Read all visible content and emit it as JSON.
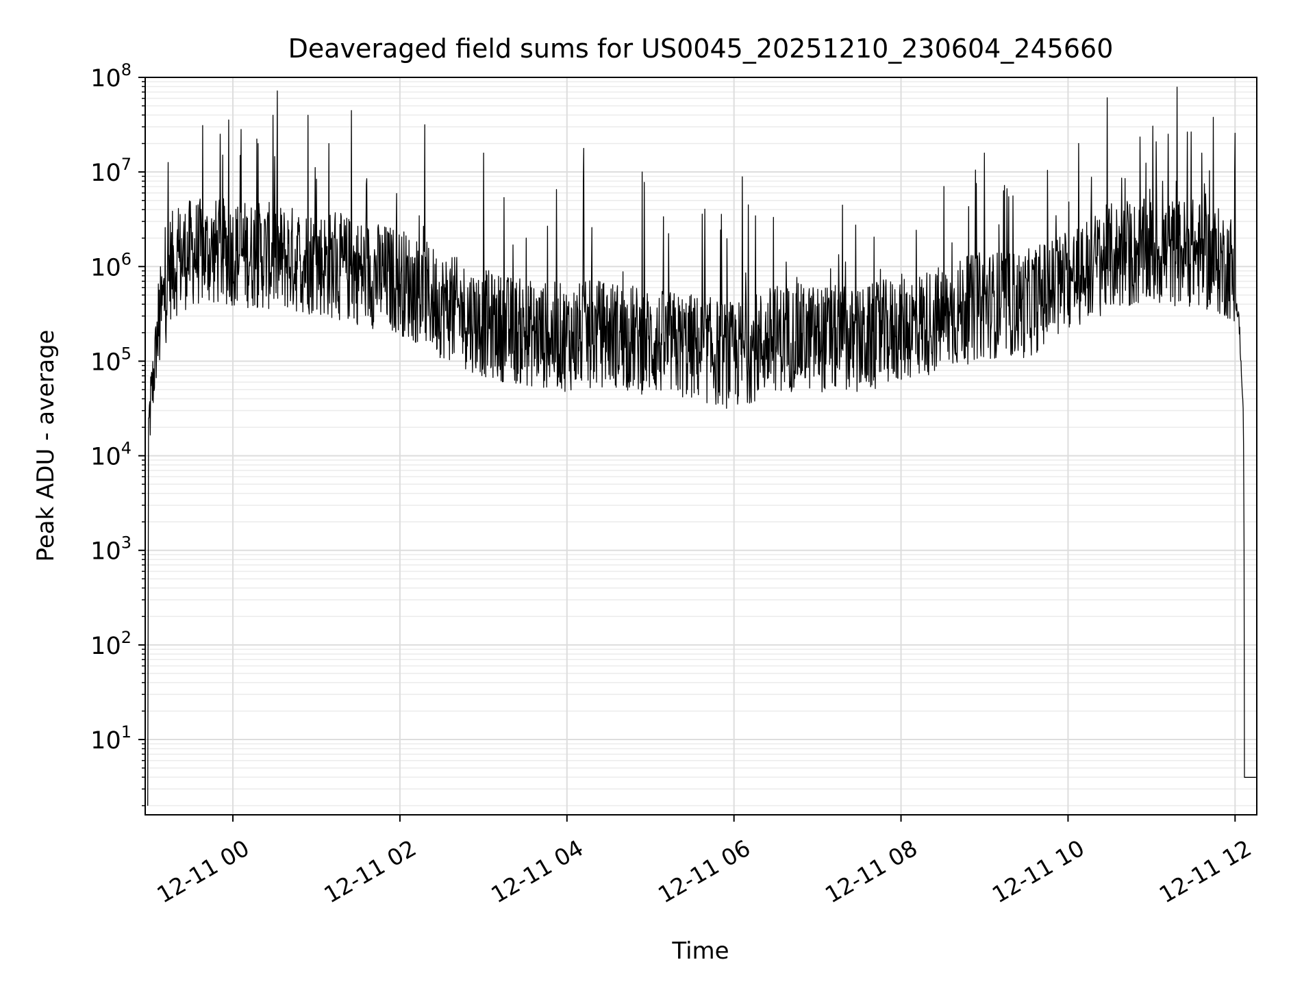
{
  "chart_data": {
    "type": "line",
    "title": "Deaveraged field sums for US0045_20251210_230604_245660",
    "xlabel": "Time",
    "ylabel": "Peak ADU - average",
    "yscale": "log",
    "ylim": [
      1.6,
      100000000
    ],
    "xlim_hours": [
      -1.05,
      12.26
    ],
    "grid": true,
    "x_ticks": [
      {
        "label": "12-11 00",
        "hour": 0
      },
      {
        "label": "12-11 02",
        "hour": 2
      },
      {
        "label": "12-11 04",
        "hour": 4
      },
      {
        "label": "12-11 06",
        "hour": 6
      },
      {
        "label": "12-11 08",
        "hour": 8
      },
      {
        "label": "12-11 10",
        "hour": 10
      },
      {
        "label": "12-11 12",
        "hour": 12
      }
    ],
    "y_ticks": [
      {
        "base": "10",
        "exp": "1",
        "value": 10
      },
      {
        "base": "10",
        "exp": "2",
        "value": 100
      },
      {
        "base": "10",
        "exp": "3",
        "value": 1000
      },
      {
        "base": "10",
        "exp": "4",
        "value": 10000
      },
      {
        "base": "10",
        "exp": "5",
        "value": 100000
      },
      {
        "base": "10",
        "exp": "6",
        "value": 1000000
      },
      {
        "base": "10",
        "exp": "7",
        "value": 10000000
      },
      {
        "base": "10",
        "exp": "8",
        "value": 100000000
      }
    ],
    "series": [
      {
        "name": "field sums",
        "color": "#000000",
        "note": "noisy trace; baseline in log10 units, spread and spikes approximated from figure",
        "baseline_log10": [
          [
            -1.02,
            4.2
          ],
          [
            -0.9,
            5.3
          ],
          [
            -0.75,
            6.0
          ],
          [
            -0.5,
            6.15
          ],
          [
            0.0,
            6.15
          ],
          [
            1.0,
            6.05
          ],
          [
            2.0,
            5.85
          ],
          [
            2.5,
            5.6
          ],
          [
            3.0,
            5.4
          ],
          [
            3.5,
            5.3
          ],
          [
            4.0,
            5.25
          ],
          [
            4.5,
            5.3
          ],
          [
            5.0,
            5.2
          ],
          [
            5.5,
            5.15
          ],
          [
            6.0,
            5.05
          ],
          [
            6.5,
            5.25
          ],
          [
            7.0,
            5.25
          ],
          [
            7.5,
            5.2
          ],
          [
            8.0,
            5.35
          ],
          [
            8.5,
            5.45
          ],
          [
            9.0,
            5.6
          ],
          [
            9.5,
            5.6
          ],
          [
            10.0,
            5.85
          ],
          [
            10.5,
            6.1
          ],
          [
            11.0,
            6.15
          ],
          [
            11.5,
            6.15
          ],
          [
            11.95,
            6.0
          ],
          [
            12.05,
            5.4
          ],
          [
            12.1,
            4.4
          ],
          [
            12.12,
            0.6
          ],
          [
            12.26,
            0.6
          ]
        ],
        "spikes": [
          [
            -0.15,
            7.4
          ],
          [
            -0.05,
            7.55
          ],
          [
            0.1,
            7.45
          ],
          [
            0.3,
            7.3
          ],
          [
            0.48,
            7.6
          ],
          [
            0.9,
            7.6
          ],
          [
            1.15,
            7.3
          ],
          [
            1.42,
            7.65
          ],
          [
            2.3,
            7.5
          ],
          [
            3.0,
            7.2
          ],
          [
            4.2,
            7.25
          ],
          [
            4.9,
            7.0
          ],
          [
            6.1,
            6.95
          ],
          [
            7.3,
            6.65
          ],
          [
            9.0,
            7.2
          ],
          [
            11.2,
            7.4
          ],
          [
            11.6,
            7.2
          ]
        ]
      }
    ]
  }
}
